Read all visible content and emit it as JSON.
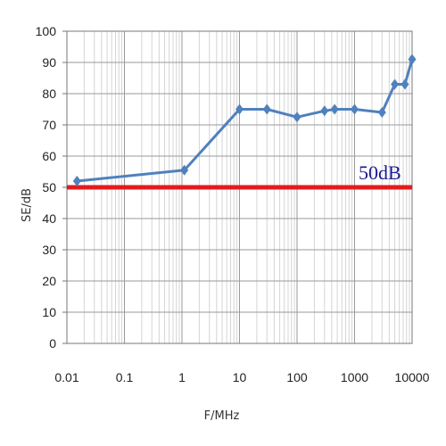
{
  "chart_data": {
    "type": "line",
    "x_scale": "log",
    "xlim": [
      0.01,
      10000
    ],
    "ylim": [
      0,
      100
    ],
    "xlabel": "F/MHz",
    "ylabel": "SE/dB",
    "x_ticks": [
      "0.01",
      "0.1",
      "1",
      "10",
      "100",
      "1000",
      "10000"
    ],
    "y_ticks": [
      "0",
      "10",
      "20",
      "30",
      "40",
      "50",
      "60",
      "70",
      "80",
      "90",
      "100"
    ],
    "grid": true,
    "series": [
      {
        "color": "#4F81BD",
        "marker": "diamond",
        "x": [
          0.015,
          1.1,
          10,
          30,
          100,
          300,
          450,
          1000,
          3000,
          5000,
          7500,
          10000
        ],
        "y": [
          52,
          55.5,
          75,
          75,
          72.5,
          74.5,
          75,
          75,
          74,
          83,
          83,
          91
        ]
      }
    ],
    "threshold": {
      "y": 50,
      "label": "50dB",
      "color": "#E41A1C",
      "label_color": "#1A1A8C"
    }
  }
}
